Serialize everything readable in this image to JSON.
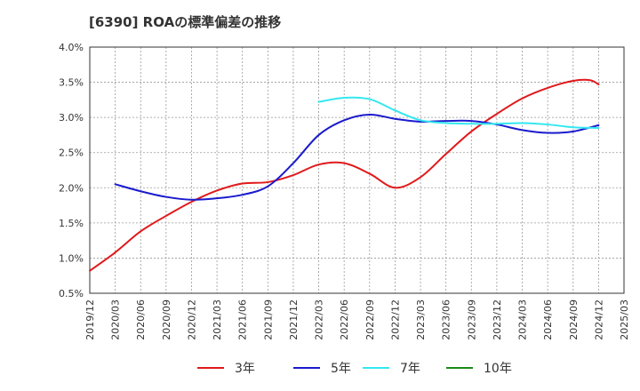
{
  "chart_data": {
    "type": "line",
    "title": "[6390]  ROAの標準偏差の推移",
    "xlabel": "",
    "ylabel": "",
    "ylim": [
      0.5,
      4.0
    ],
    "y_ticks": [
      "0.5%",
      "1.0%",
      "1.5%",
      "2.0%",
      "2.5%",
      "3.0%",
      "3.5%",
      "4.0%"
    ],
    "x_ticks": [
      "2019/12",
      "2020/03",
      "2020/06",
      "2020/09",
      "2020/12",
      "2021/03",
      "2021/06",
      "2021/09",
      "2021/12",
      "2022/03",
      "2022/06",
      "2022/09",
      "2022/12",
      "2023/03",
      "2023/06",
      "2023/09",
      "2023/12",
      "2024/03",
      "2024/06",
      "2024/09",
      "2024/12",
      "2025/03"
    ],
    "grid": true,
    "legend_position": "bottom",
    "series": [
      {
        "name": "3年",
        "color": "#e0191b",
        "points": [
          [
            "2019/12",
            0.82
          ],
          [
            "2020/03",
            1.08
          ],
          [
            "2020/06",
            1.38
          ],
          [
            "2020/09",
            1.6
          ],
          [
            "2020/12",
            1.8
          ],
          [
            "2021/03",
            1.96
          ],
          [
            "2021/06",
            2.06
          ],
          [
            "2021/09",
            2.08
          ],
          [
            "2021/12",
            2.18
          ],
          [
            "2022/03",
            2.33
          ],
          [
            "2022/06",
            2.35
          ],
          [
            "2022/09",
            2.2
          ],
          [
            "2022/12",
            2.0
          ],
          [
            "2023/03",
            2.15
          ],
          [
            "2023/06",
            2.48
          ],
          [
            "2023/09",
            2.8
          ],
          [
            "2023/12",
            3.05
          ],
          [
            "2024/03",
            3.27
          ],
          [
            "2024/06",
            3.42
          ],
          [
            "2024/09",
            3.52
          ],
          [
            "2024/11",
            3.53
          ],
          [
            "2024/12",
            3.47
          ]
        ]
      },
      {
        "name": "5年",
        "color": "#1a1acd",
        "points": [
          [
            "2020/03",
            2.05
          ],
          [
            "2020/06",
            1.95
          ],
          [
            "2020/09",
            1.87
          ],
          [
            "2020/12",
            1.83
          ],
          [
            "2021/03",
            1.85
          ],
          [
            "2021/06",
            1.9
          ],
          [
            "2021/09",
            2.02
          ],
          [
            "2021/12",
            2.35
          ],
          [
            "2022/03",
            2.75
          ],
          [
            "2022/06",
            2.96
          ],
          [
            "2022/09",
            3.04
          ],
          [
            "2022/12",
            2.98
          ],
          [
            "2023/03",
            2.94
          ],
          [
            "2023/06",
            2.95
          ],
          [
            "2023/09",
            2.95
          ],
          [
            "2023/12",
            2.9
          ],
          [
            "2024/03",
            2.82
          ],
          [
            "2024/06",
            2.78
          ],
          [
            "2024/09",
            2.8
          ],
          [
            "2024/12",
            2.89
          ]
        ]
      },
      {
        "name": "7年",
        "color": "#33e8f0",
        "points": [
          [
            "2022/03",
            3.22
          ],
          [
            "2022/06",
            3.28
          ],
          [
            "2022/09",
            3.26
          ],
          [
            "2022/12",
            3.1
          ],
          [
            "2023/03",
            2.96
          ],
          [
            "2023/06",
            2.92
          ],
          [
            "2023/09",
            2.91
          ],
          [
            "2023/12",
            2.91
          ],
          [
            "2024/03",
            2.92
          ],
          [
            "2024/06",
            2.9
          ],
          [
            "2024/09",
            2.86
          ],
          [
            "2024/12",
            2.85
          ]
        ]
      },
      {
        "name": "10年",
        "color": "#1a8a1a",
        "points": []
      }
    ]
  }
}
